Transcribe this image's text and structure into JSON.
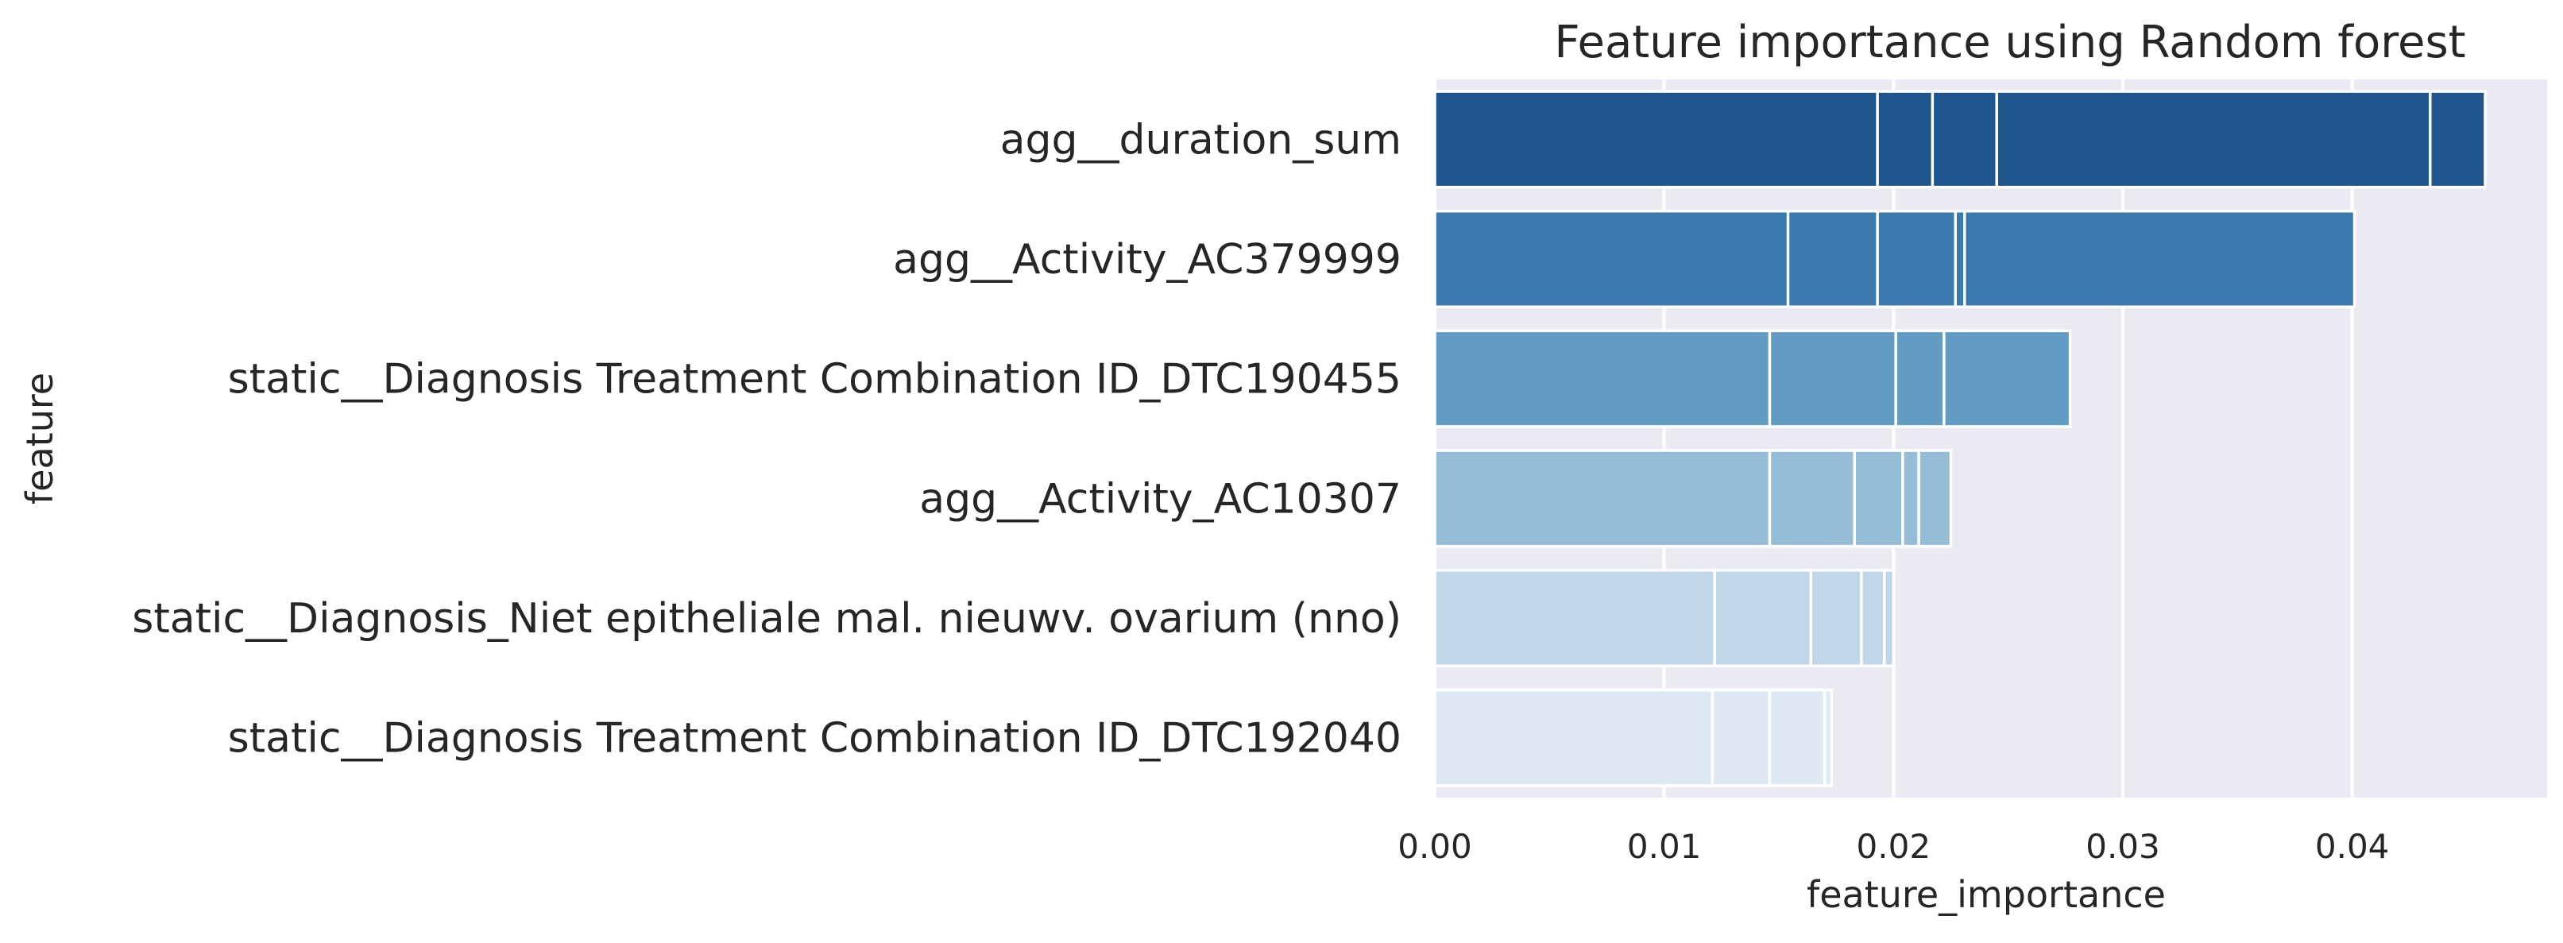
{
  "chart_data": {
    "type": "bar",
    "orientation": "horizontal",
    "title": "Feature importance using Random forest",
    "xlabel": "feature_importance",
    "ylabel": "feature",
    "xlim": [
      0,
      0.0485
    ],
    "xticks": [
      0.0,
      0.01,
      0.02,
      0.03,
      0.04
    ],
    "xtick_labels": [
      "0.00",
      "0.01",
      "0.02",
      "0.03",
      "0.04"
    ],
    "grid": true,
    "legend": "none",
    "categories": [
      "agg__duration_sum",
      "agg__Activity_AC379999",
      "static__Diagnosis Treatment Combination ID_DTC190455",
      "agg__Activity_AC10307",
      "static__Diagnosis_Niet epitheliale mal. nieuwv. ovarium (nno)",
      "static__Diagnosis Treatment Combination ID_DTC192040"
    ],
    "bar_colors": [
      "#1f558d",
      "#3a79ad",
      "#629cc2",
      "#95bdd6",
      "#c1d7e7",
      "#dfe9f3"
    ],
    "values": [
      0.0458,
      0.0401,
      0.0277,
      0.0225,
      0.02,
      0.0173
    ],
    "overlaid_values": [
      [
        0.0193,
        0.0217,
        0.0245,
        0.0434,
        0.0458
      ],
      [
        0.0154,
        0.0193,
        0.0227,
        0.0231,
        0.0401
      ],
      [
        0.0146,
        0.0201,
        0.0222,
        0.0277
      ],
      [
        0.0146,
        0.0183,
        0.0204,
        0.0211,
        0.0225
      ],
      [
        0.0122,
        0.0164,
        0.0186,
        0.0196,
        0.02
      ],
      [
        0.0121,
        0.0146,
        0.017,
        0.0173
      ]
    ],
    "colors": {
      "plot_background": "#eaeaf2",
      "grid": "#ffffff",
      "text": "#262626"
    }
  }
}
